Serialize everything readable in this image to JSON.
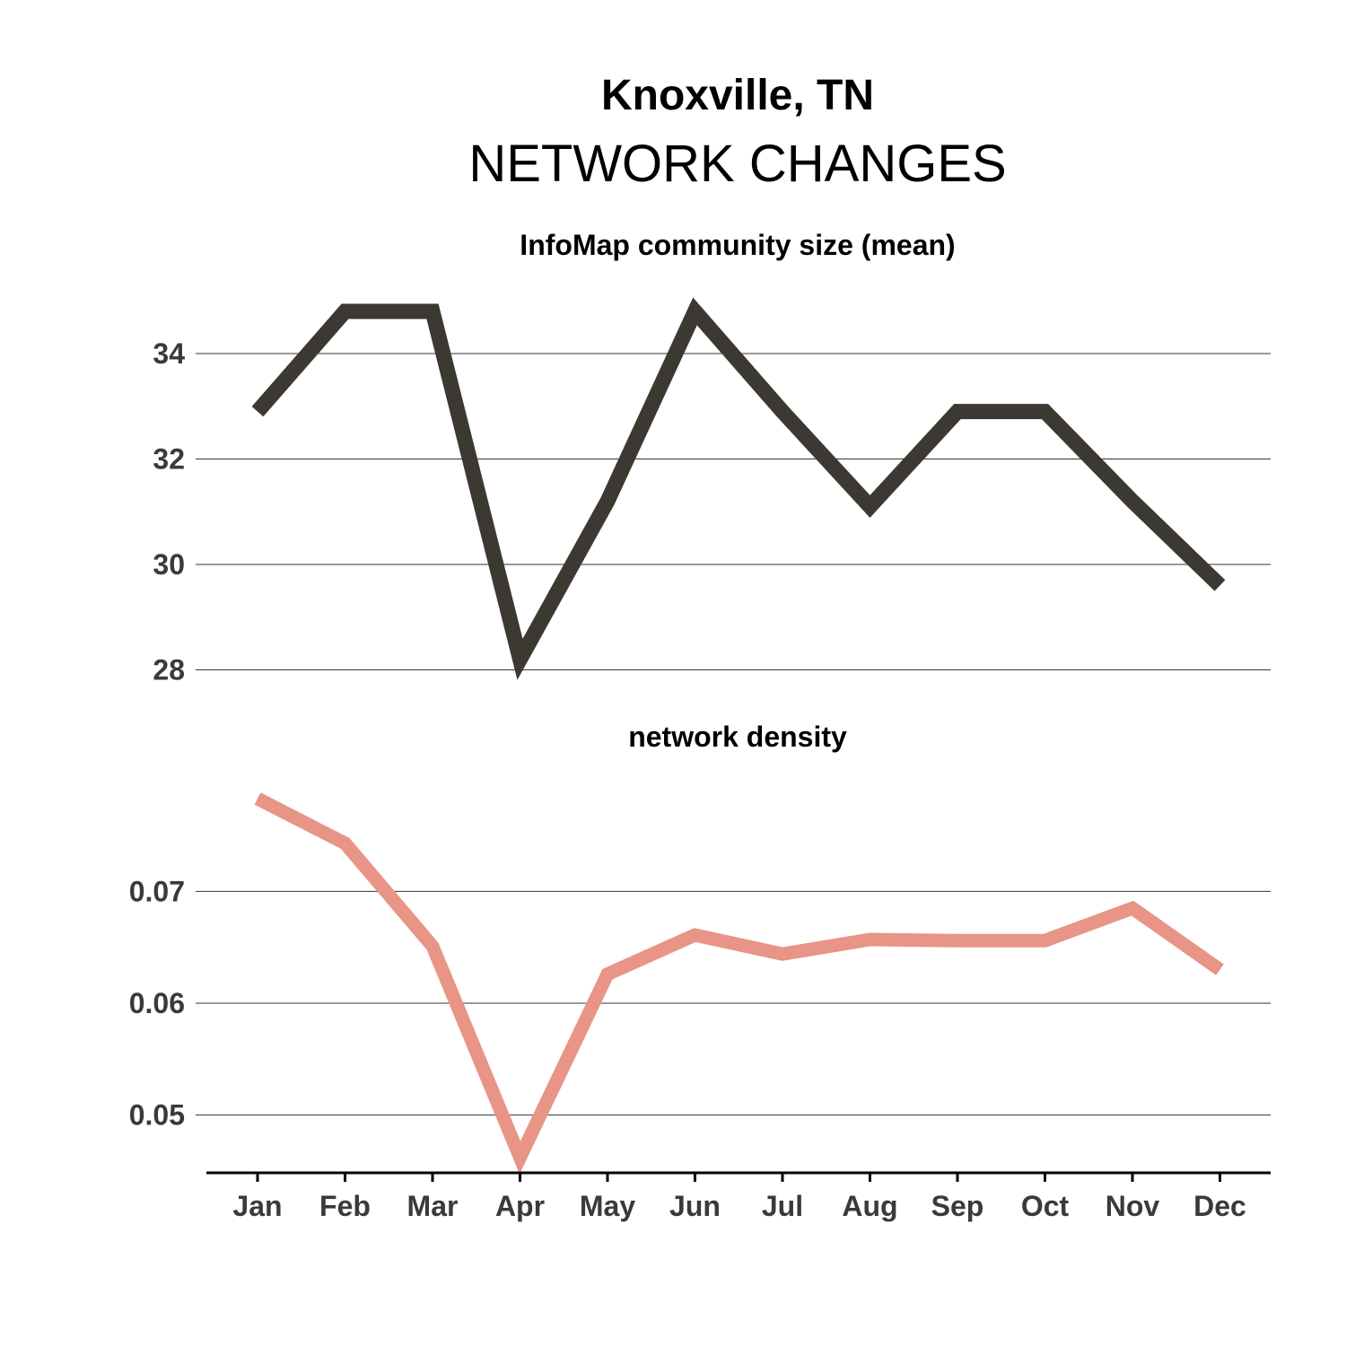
{
  "title": "Knoxville, TN",
  "subtitle": "NETWORK CHANGES",
  "chart_data": [
    {
      "type": "line",
      "title": "InfoMap community size (mean)",
      "categories": [
        "Jan",
        "Feb",
        "Mar",
        "Apr",
        "May",
        "Jun",
        "Jul",
        "Aug",
        "Sep",
        "Oct",
        "Nov",
        "Dec"
      ],
      "series": [
        {
          "values": [
            32.9,
            34.8,
            34.8,
            28.2,
            31.2,
            34.8,
            32.9,
            31.1,
            32.9,
            32.9,
            31.2,
            29.6
          ],
          "color": "#3b3932"
        }
      ],
      "yticks": [
        28,
        30,
        32,
        34
      ],
      "ylim": [
        27.6,
        35.6
      ],
      "grid": true,
      "xlabel": "",
      "ylabel": ""
    },
    {
      "type": "line",
      "title": "network density",
      "categories": [
        "Jan",
        "Feb",
        "Mar",
        "Apr",
        "May",
        "Jun",
        "Jul",
        "Aug",
        "Sep",
        "Oct",
        "Nov",
        "Dec"
      ],
      "series": [
        {
          "values": [
            0.0783,
            0.0743,
            0.0651,
            0.0462,
            0.0626,
            0.0661,
            0.0644,
            0.0657,
            0.0656,
            0.0656,
            0.0685,
            0.063
          ],
          "color": "#e89486"
        }
      ],
      "yticks": [
        0.05,
        0.06,
        0.07
      ],
      "ytick_labels": [
        "0.05",
        "0.06",
        "0.07"
      ],
      "ylim": [
        0.045,
        0.0815
      ],
      "grid": true,
      "xlabel": "",
      "ylabel": ""
    }
  ]
}
